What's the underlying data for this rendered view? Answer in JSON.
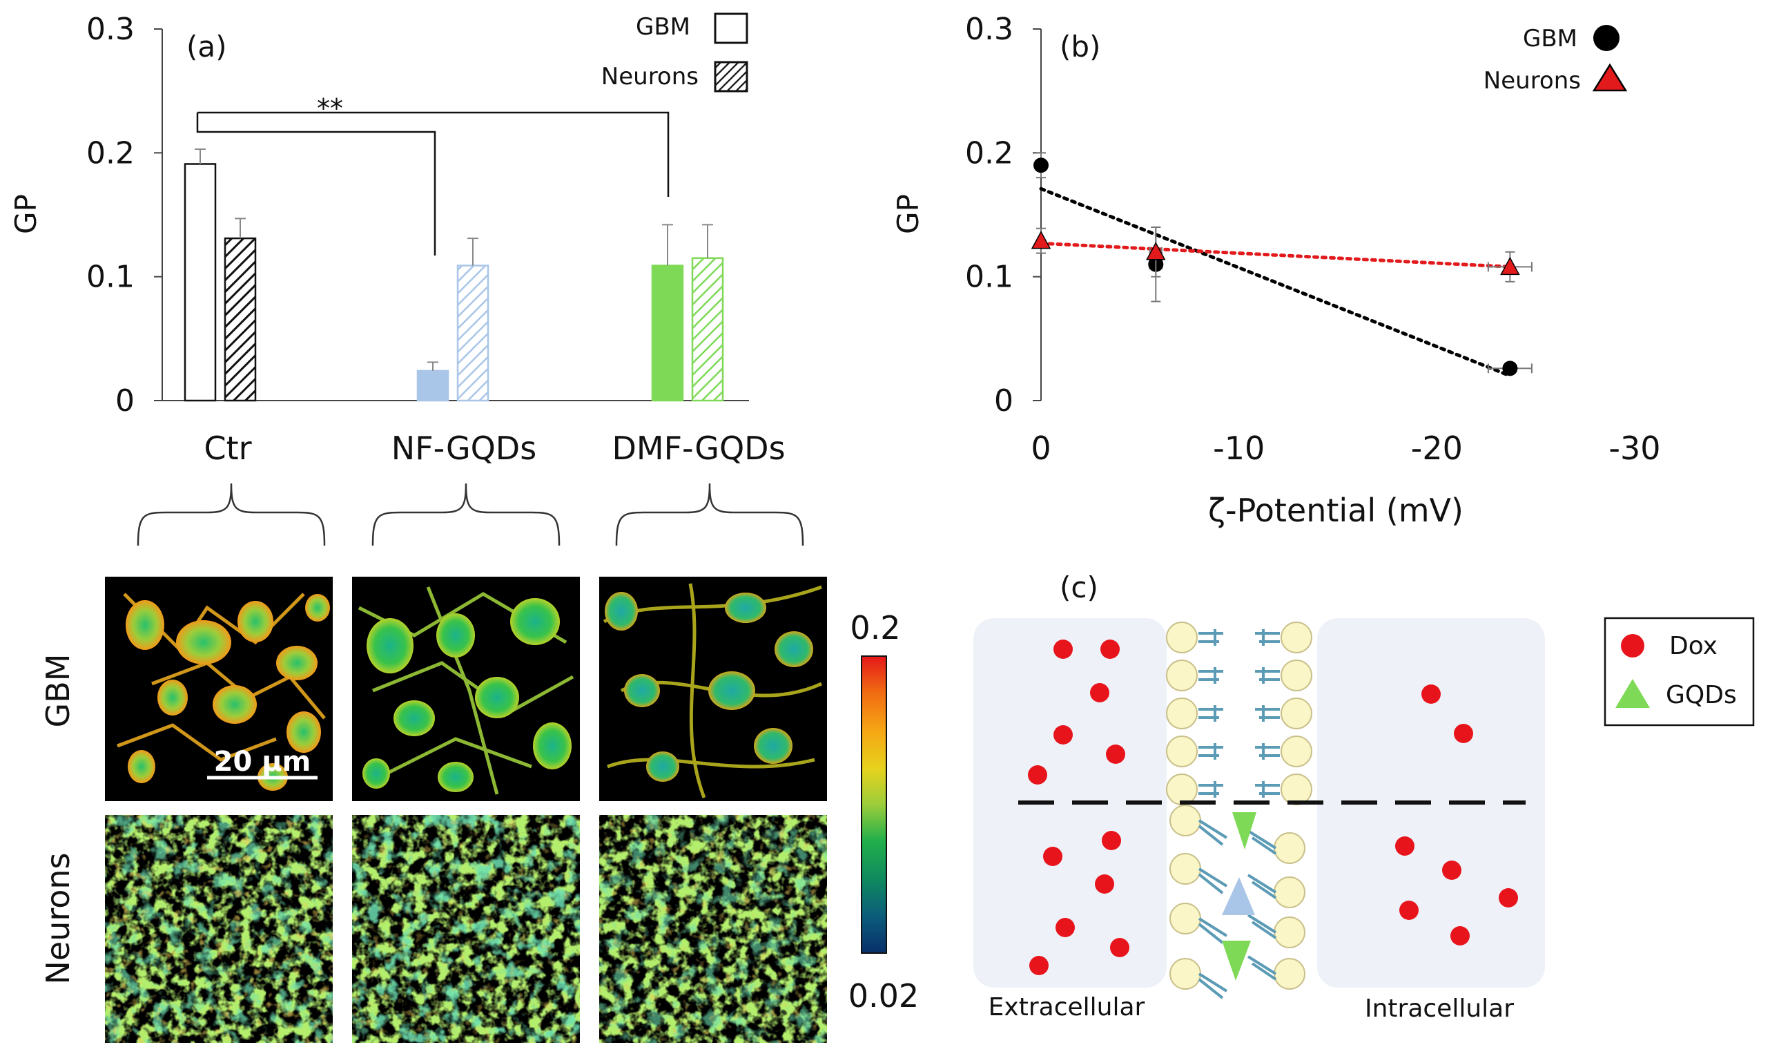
{
  "chart_data": [
    {
      "panel": "(a)",
      "type": "bar",
      "ylabel": "GP",
      "ylim": [
        0,
        0.3
      ],
      "yticks": [
        "0",
        "0.1",
        "0.2",
        "0.3"
      ],
      "categories": [
        "Ctr",
        "NF-GQDs",
        "DMF-GQDs"
      ],
      "series": [
        {
          "name": "GBM",
          "values": [
            0.191,
            0.024,
            0.109
          ],
          "errors": [
            0.012,
            0.007,
            0.033
          ]
        },
        {
          "name": "Neurons",
          "values": [
            0.131,
            0.109,
            0.115
          ],
          "errors": [
            0.016,
            0.022,
            0.027
          ]
        }
      ],
      "bar_colors": {
        "Ctr": "#ffffff",
        "NF-GQDs": "#a9c5e8",
        "DMF-GQDs": "#7ed957"
      },
      "significance": "**",
      "legend": [
        "GBM",
        "Neurons"
      ]
    },
    {
      "panel": "(b)",
      "type": "scatter",
      "xlabel": "ζ-Potential (mV)",
      "ylabel": "GP",
      "xlim": [
        0,
        -30
      ],
      "ylim": [
        0,
        0.3
      ],
      "xticks": [
        "0",
        "-10",
        "-20",
        "-30"
      ],
      "yticks": [
        "0",
        "0.1",
        "0.2",
        "0.3"
      ],
      "series": [
        {
          "name": "GBM",
          "marker": "circle",
          "color": "#000000",
          "x": [
            0,
            -5.8,
            -23.7
          ],
          "y": [
            0.19,
            0.11,
            0.026
          ],
          "yerr": [
            0.01,
            0.03,
            0.003
          ],
          "xerr": [
            0,
            0.3,
            1.1
          ],
          "trend": [
            [
              0,
              0.171
            ],
            [
              -23.7,
              0.02
            ]
          ]
        },
        {
          "name": "Neurons",
          "marker": "triangle",
          "color": "#e31a1c",
          "x": [
            0,
            -5.8,
            -23.7
          ],
          "y": [
            0.129,
            0.12,
            0.108
          ],
          "yerr": [
            0.01,
            0.02,
            0.012
          ],
          "xerr": [
            0,
            0.3,
            1.1
          ],
          "trend": [
            [
              0,
              0.127
            ],
            [
              -23.7,
              0.108
            ]
          ]
        }
      ],
      "legend": [
        "GBM",
        "Neurons"
      ]
    }
  ],
  "panel_a": {
    "label": "(a)",
    "legend_gbm": "GBM",
    "legend_neurons": "Neurons",
    "significance": "**",
    "ylabel": "GP",
    "categories": [
      "Ctr",
      "NF-GQDs",
      "DMF-GQDs"
    ]
  },
  "panel_b": {
    "label": "(b)",
    "legend_gbm": "GBM",
    "legend_neurons": "Neurons",
    "ylabel": "GP",
    "xlabel": "ζ-Potential (mV)"
  },
  "images": {
    "row_labels": [
      "GBM",
      "Neurons"
    ],
    "scale_bar": "20 µm",
    "colorbar_max": "0.2",
    "colorbar_min": "0.02"
  },
  "panel_c": {
    "label": "(c)",
    "left_label": "Extracellular",
    "right_label": "Intracellular",
    "legend_dox": "Dox",
    "legend_gqds": "GQDs",
    "colors": {
      "dox": "#e8141c",
      "gqds": "#7ed957",
      "gqds_light": "#a9c5e8",
      "lipid_head": "#fbf6c8",
      "lipid_tail": "#5b9bb5",
      "compartment": "#eef2f8"
    }
  }
}
